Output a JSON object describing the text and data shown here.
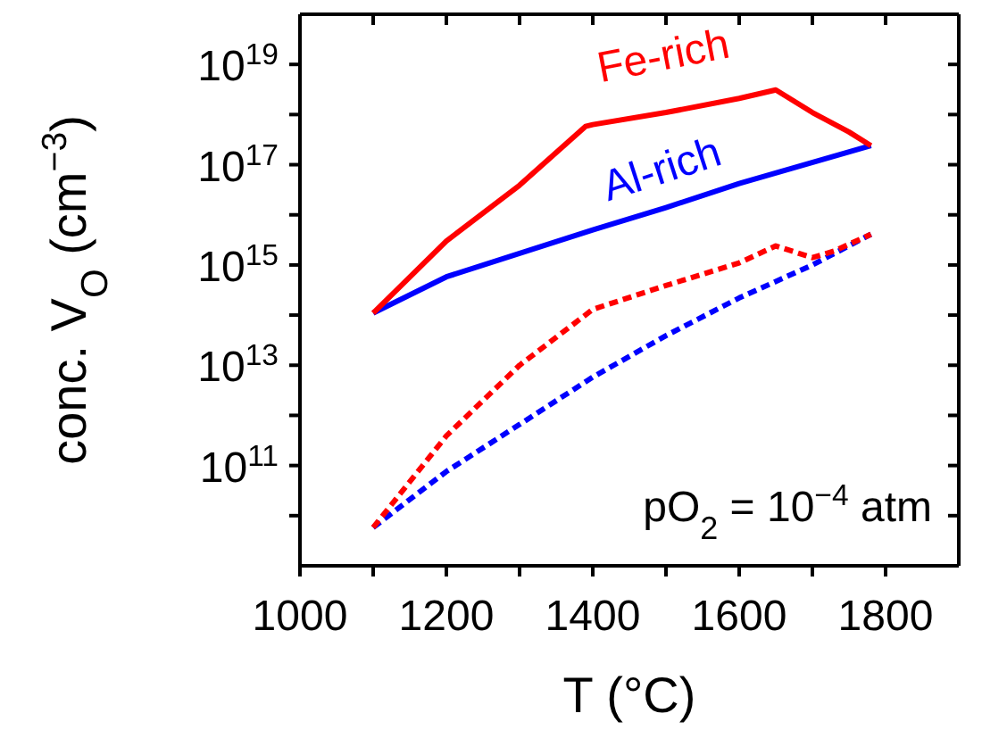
{
  "chart_data": {
    "type": "line",
    "xlabel": "T (°C)",
    "ylabel": "conc. V$_{O}$ (cm$^{−3}$)",
    "log": "y",
    "xlim": [
      1000,
      1900
    ],
    "xticks": [
      1000,
      {
        "value": 1100,
        "label": null
      },
      1200,
      {
        "value": 1300,
        "label": null
      },
      1400,
      {
        "value": 1500,
        "label": null
      },
      1600,
      {
        "value": 1700,
        "label": null
      },
      1800
    ],
    "ylim": [
      1000000000.0,
      1e+20
    ],
    "yticks": [
      {
        "value": 10000000000.0,
        "label": null
      },
      {
        "value": 100000000000.0,
        "label": "10$^{11}$"
      },
      {
        "value": 1000000000000.0,
        "label": null
      },
      {
        "value": 10000000000000.0,
        "label": "10$^{13}$"
      },
      {
        "value": 100000000000000.0,
        "label": null
      },
      {
        "value": 1000000000000000.0,
        "label": "10$^{15}$"
      },
      {
        "value": 1e+16,
        "label": null
      },
      {
        "value": 1e+17,
        "label": "10$^{17}$"
      },
      {
        "value": 1e+18,
        "label": null
      },
      {
        "value": 1e+19,
        "label": "10$^{19}$"
      }
    ],
    "marker": "none",
    "annotations": [
      "pO$_{2}$ = 10$^{−4}$ atm"
    ],
    "series": [
      {
        "name": "Fe-rich",
        "color": "#ff0000",
        "line_style": "solid",
        "x": [
          1100,
          1200,
          1300,
          1390,
          1400,
          1500,
          1600,
          1650,
          1700,
          1750,
          1780
        ],
        "values": [
          110000000000000.0,
          3000000000000000.0,
          3.9e+16,
          5.8e+17,
          6.3e+17,
          1.1e+18,
          2.1e+18,
          3.1e+18,
          1.1e+18,
          4.5e+17,
          2.4e+17
        ]
      },
      {
        "name": "Al-rich",
        "color": "#0000ff",
        "line_style": "solid",
        "x": [
          1100,
          1200,
          1400,
          1500,
          1600,
          1780
        ],
        "values": [
          110000000000000.0,
          580000000000000.0,
          5000000000000000.0,
          1.4e+16,
          4.2e+16,
          2.4e+17
        ]
      },
      {
        "color": "#ff0000",
        "line_style": "dashed",
        "x": [
          1100,
          1200,
          1300,
          1400,
          1500,
          1600,
          1650,
          1700,
          1730,
          1780
        ],
        "values": [
          5800000000.0,
          390000000000.0,
          10000000000000.0,
          130000000000000.0,
          390000000000000.0,
          1100000000000000.0,
          2400000000000000.0,
          1400000000000000.0,
          1900000000000000.0,
          4100000000000000.0
        ]
      },
      {
        "color": "#0000ff",
        "line_style": "dashed",
        "x": [
          1100,
          1200,
          1300,
          1400,
          1500,
          1600,
          1700,
          1780
        ],
        "values": [
          5800000000.0,
          76000000000.0,
          660000000000.0,
          5800000000000.0,
          39000000000000.0,
          220000000000000.0,
          1000000000000000.0,
          4100000000000000.0
        ]
      }
    ]
  }
}
